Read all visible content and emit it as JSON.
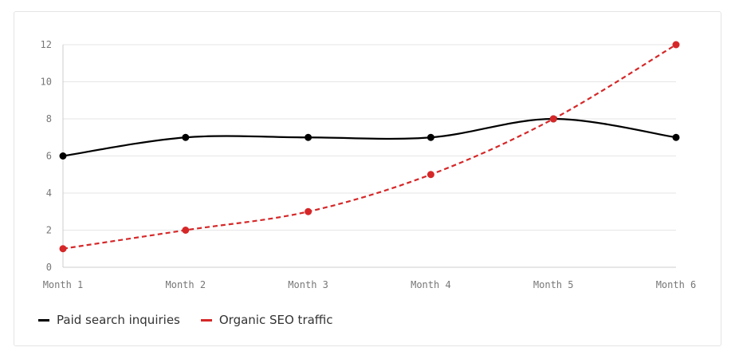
{
  "chart_data": {
    "type": "line",
    "categories": [
      "Month 1",
      "Month 2",
      "Month 3",
      "Month 4",
      "Month 5",
      "Month 6"
    ],
    "ylim": [
      0,
      12
    ],
    "yticks": [
      "0",
      "2",
      "4",
      "6",
      "8",
      "10",
      "12"
    ],
    "grid": true,
    "legend_position": "bottom-left",
    "series": [
      {
        "name": "Paid search inquiries",
        "values": [
          6,
          7,
          7,
          7,
          8,
          7
        ],
        "color": "#000000",
        "dashed": false
      },
      {
        "name": "Organic SEO traffic",
        "values": [
          1,
          2,
          3,
          5,
          8,
          12
        ],
        "color": "#d62728",
        "dashed": true
      }
    ]
  }
}
